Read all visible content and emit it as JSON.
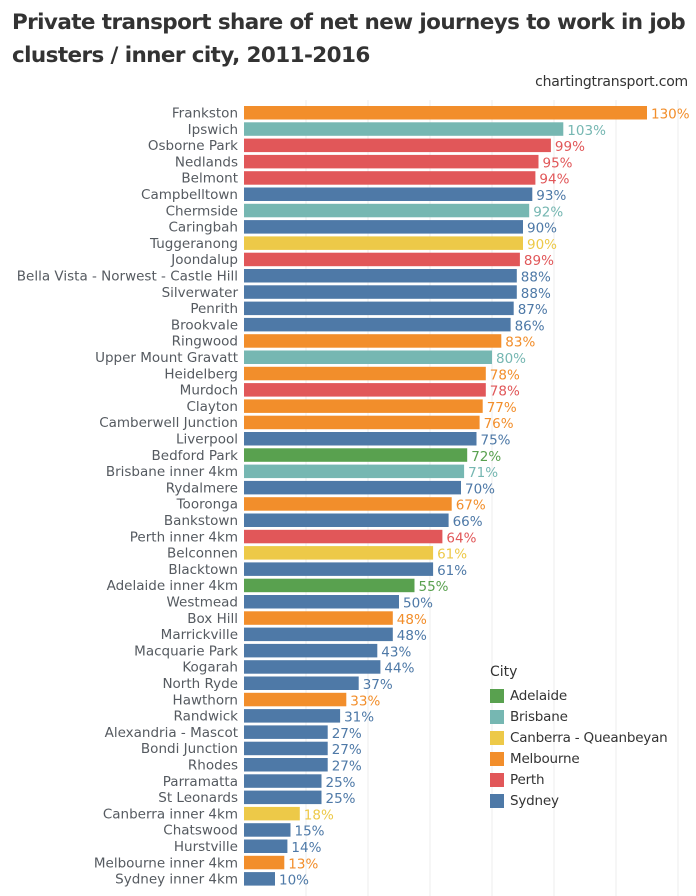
{
  "header": {
    "title": "Private transport share of net new journeys to work in job clusters / inner city, 2011-2016",
    "source": "chartingtransport.com"
  },
  "legend": {
    "title": "City",
    "items": [
      {
        "name": "Adelaide",
        "color": "#59a14f"
      },
      {
        "name": "Brisbane",
        "color": "#76b7b2"
      },
      {
        "name": "Canberra - Queanbeyan",
        "color": "#edc948"
      },
      {
        "name": "Melbourne",
        "color": "#f28e2b"
      },
      {
        "name": "Perth",
        "color": "#e15759"
      },
      {
        "name": "Sydney",
        "color": "#4e79a7"
      }
    ]
  },
  "chart_data": {
    "type": "bar",
    "orientation": "horizontal",
    "title": "Private transport share of net new journeys to work in job clusters / inner city, 2011-2016",
    "xlabel": "",
    "ylabel": "",
    "xlim": [
      0,
      140
    ],
    "grid": true,
    "gridline_step": 20,
    "value_format": "percent",
    "legend_position": "bottom-right",
    "legend_title": "City",
    "categories": [
      "Frankston",
      "Ipswich",
      "Osborne Park",
      "Nedlands",
      "Belmont",
      "Campbelltown",
      "Chermside",
      "Caringbah",
      "Tuggeranong",
      "Joondalup",
      "Bella Vista - Norwest - Castle Hill",
      "Silverwater",
      "Penrith",
      "Brookvale",
      "Ringwood",
      "Upper Mount Gravatt",
      "Heidelberg",
      "Murdoch",
      "Clayton",
      "Camberwell Junction",
      "Liverpool",
      "Bedford Park",
      "Brisbane inner 4km",
      "Rydalmere",
      "Tooronga",
      "Bankstown",
      "Perth inner 4km",
      "Belconnen",
      "Blacktown",
      "Adelaide inner 4km",
      "Westmead",
      "Box Hill",
      "Marrickville",
      "Macquarie Park",
      "Kogarah",
      "North Ryde",
      "Hawthorn",
      "Randwick",
      "Alexandria - Mascot",
      "Bondi Junction",
      "Rhodes",
      "Parramatta",
      "St Leonards",
      "Canberra inner 4km",
      "Chatswood",
      "Hurstville",
      "Melbourne inner 4km",
      "Sydney inner 4km"
    ],
    "values": [
      130,
      103,
      99,
      95,
      94,
      93,
      92,
      90,
      90,
      89,
      88,
      88,
      87,
      86,
      83,
      80,
      78,
      78,
      77,
      76,
      75,
      72,
      71,
      70,
      67,
      66,
      64,
      61,
      61,
      55,
      50,
      48,
      48,
      43,
      44,
      37,
      33,
      31,
      27,
      27,
      27,
      25,
      25,
      18,
      15,
      14,
      13,
      10
    ],
    "city": [
      "Melbourne",
      "Brisbane",
      "Perth",
      "Perth",
      "Perth",
      "Sydney",
      "Brisbane",
      "Sydney",
      "Canberra - Queanbeyan",
      "Perth",
      "Sydney",
      "Sydney",
      "Sydney",
      "Sydney",
      "Melbourne",
      "Brisbane",
      "Melbourne",
      "Perth",
      "Melbourne",
      "Melbourne",
      "Sydney",
      "Adelaide",
      "Brisbane",
      "Sydney",
      "Melbourne",
      "Sydney",
      "Perth",
      "Canberra - Queanbeyan",
      "Sydney",
      "Adelaide",
      "Sydney",
      "Melbourne",
      "Sydney",
      "Sydney",
      "Sydney",
      "Sydney",
      "Melbourne",
      "Sydney",
      "Sydney",
      "Sydney",
      "Sydney",
      "Sydney",
      "Sydney",
      "Canberra - Queanbeyan",
      "Sydney",
      "Sydney",
      "Melbourne",
      "Sydney"
    ],
    "data_labels": [
      "130%",
      "103%",
      "99%",
      "95%",
      "94%",
      "93%",
      "92%",
      "90%",
      "90%",
      "89%",
      "88%",
      "88%",
      "87%",
      "86%",
      "83%",
      "80%",
      "78%",
      "78%",
      "77%",
      "76%",
      "75%",
      "72%",
      "71%",
      "70%",
      "67%",
      "66%",
      "64%",
      "61%",
      "61%",
      "55%",
      "50%",
      "48%",
      "48%",
      "43%",
      "44%",
      "37%",
      "33%",
      "31%",
      "27%",
      "27%",
      "27%",
      "25%",
      "25%",
      "18%",
      "15%",
      "14%",
      "13%",
      "10%"
    ]
  }
}
